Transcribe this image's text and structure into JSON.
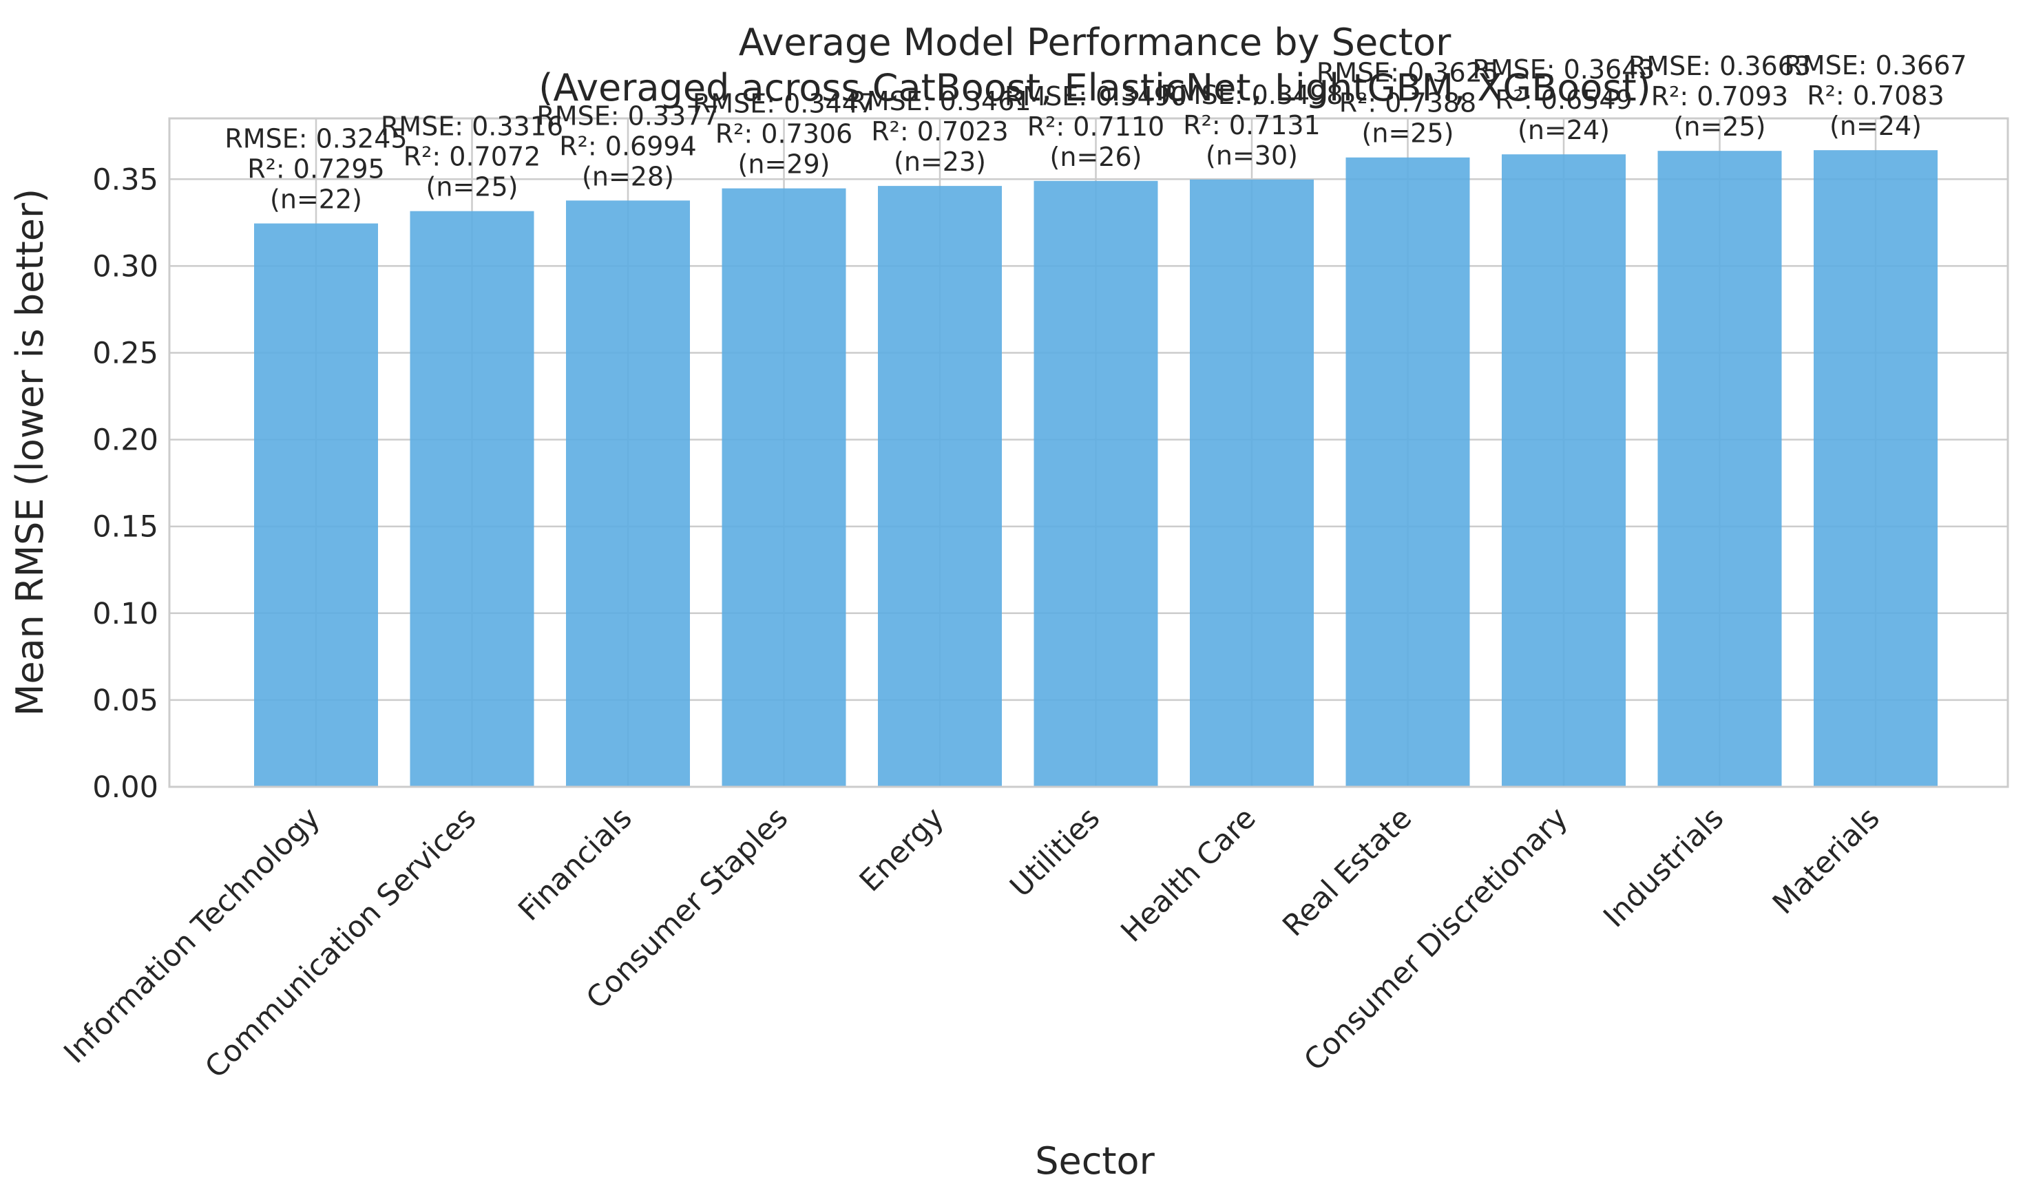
{
  "chart_data": {
    "type": "bar",
    "title": "Average Model Performance by Sector",
    "subtitle": "(Averaged across CatBoost, ElasticNet, LightGBM, XGBoost)",
    "xlabel": "Sector",
    "ylabel": "Mean RMSE (lower is better)",
    "ylim": [
      0,
      0.385
    ],
    "yticks": [
      "0.00",
      "0.05",
      "0.10",
      "0.15",
      "0.20",
      "0.25",
      "0.30",
      "0.35"
    ],
    "grid": true,
    "bar_color": "#5dade2",
    "categories": [
      "Information Technology",
      "Communication Services",
      "Financials",
      "Consumer Staples",
      "Energy",
      "Utilities",
      "Health Care",
      "Real Estate",
      "Consumer Discretionary",
      "Industrials",
      "Materials"
    ],
    "values": [
      0.3245,
      0.3316,
      0.3377,
      0.3447,
      0.3461,
      0.349,
      0.3498,
      0.3625,
      0.3643,
      0.3663,
      0.3667
    ],
    "annotations": [
      {
        "rmse": "RMSE: 0.3245",
        "r2": "R²: 0.7295",
        "n": "(n=22)"
      },
      {
        "rmse": "RMSE: 0.3316",
        "r2": "R²: 0.7072",
        "n": "(n=25)"
      },
      {
        "rmse": "RMSE: 0.3377",
        "r2": "R²: 0.6994",
        "n": "(n=28)"
      },
      {
        "rmse": "RMSE: 0.3447",
        "r2": "R²: 0.7306",
        "n": "(n=29)"
      },
      {
        "rmse": "RMSE: 0.3461",
        "r2": "R²: 0.7023",
        "n": "(n=23)"
      },
      {
        "rmse": "RMSE: 0.3490",
        "r2": "R²: 0.7110",
        "n": "(n=26)"
      },
      {
        "rmse": "RMSE: 0.3498",
        "r2": "R²: 0.7131",
        "n": "(n=30)"
      },
      {
        "rmse": "RMSE: 0.3625",
        "r2": "R²: 0.7388",
        "n": "(n=25)"
      },
      {
        "rmse": "RMSE: 0.3643",
        "r2": "R²: 0.6549",
        "n": "(n=24)"
      },
      {
        "rmse": "RMSE: 0.3663",
        "r2": "R²: 0.7093",
        "n": "(n=25)"
      },
      {
        "rmse": "RMSE: 0.3667",
        "r2": "R²: 0.7083",
        "n": "(n=24)"
      }
    ]
  }
}
